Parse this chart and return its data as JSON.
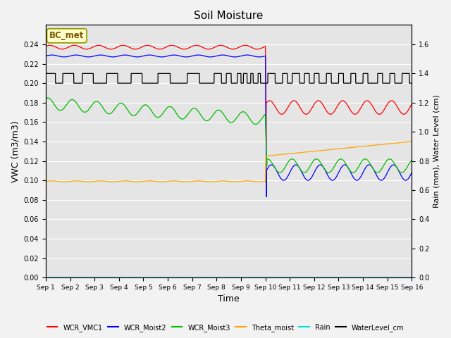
{
  "title": "Soil Moisture",
  "xlabel": "Time",
  "ylabel_left": "VWC (m3/m3)",
  "ylabel_right": "Rain (mm), Water Level (cm)",
  "ylim_left": [
    0.0,
    0.26
  ],
  "ylim_right": [
    0.0,
    1.7333
  ],
  "yticks_left": [
    0.0,
    0.02,
    0.04,
    0.06,
    0.08,
    0.1,
    0.12,
    0.14,
    0.16,
    0.18,
    0.2,
    0.22,
    0.24
  ],
  "yticks_right": [
    0.0,
    0.2,
    0.4,
    0.6,
    0.8,
    1.0,
    1.2,
    1.4,
    1.6
  ],
  "xticklabels": [
    "Sep 1",
    "Sep 2",
    "Sep 3",
    "Sep 4",
    "Sep 5",
    "Sep 6",
    "Sep 7",
    "Sep 8",
    "Sep 9",
    "Sep 10",
    "Sep 11",
    "Sep 12",
    "Sep 13",
    "Sep 14",
    "Sep 15",
    "Sep 16"
  ],
  "background_color": "#e5e5e5",
  "grid_color": "#ffffff",
  "fig_bg_color": "#f2f2f2",
  "annotation_text": "BC_met",
  "annotation_color": "#7b5900",
  "annotation_bg": "#ffffcc",
  "annotation_edge": "#999900",
  "colors": {
    "WCR_VMC1": "#ff0000",
    "WCR_Moist2": "#0000ff",
    "WCR_Moist3": "#00bb00",
    "Theta_moist": "#ffa500",
    "Rain": "#00dddd",
    "WaterLevel_cm": "#000000"
  },
  "transition_day": 9.0,
  "n_days": 15
}
